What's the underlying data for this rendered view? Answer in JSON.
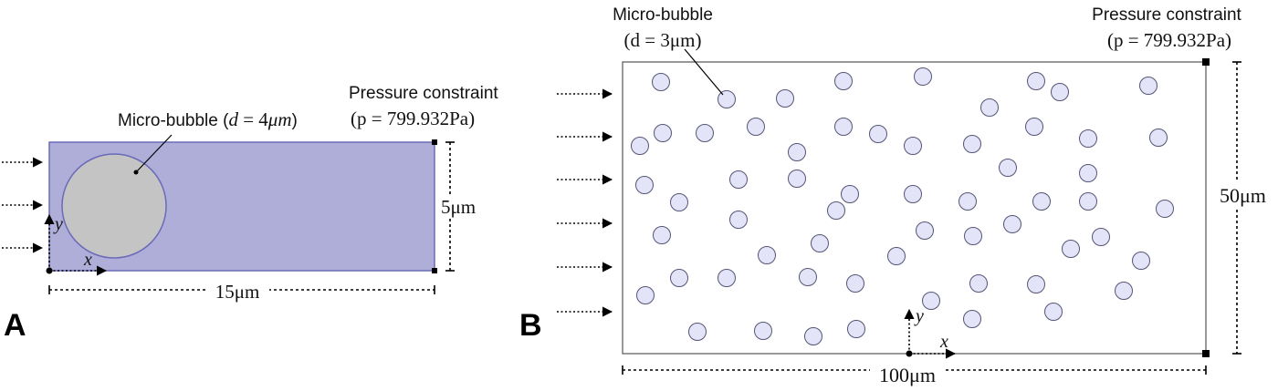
{
  "panel_a": {
    "letter": "A",
    "bubble_label": "Micro-bubble (",
    "bubble_d": "d",
    "bubble_eq": " = 4",
    "bubble_unit": "μm",
    "bubble_close": ")",
    "pressure_title": "Pressure constraint",
    "pressure_value": "(p = 799.932Pa)",
    "width_label": "15μm",
    "height_label": "5μm",
    "x_axis": "x",
    "y_axis": "y",
    "colors": {
      "domain_fill": "#aeaed8",
      "domain_stroke": "#6a6ab8",
      "bubble_fill": "#c4c4c4"
    }
  },
  "panel_b": {
    "letter": "B",
    "bubble_title": "Micro-bubble",
    "bubble_size": "(d = 3μm)",
    "pressure_title": "Pressure constraint",
    "pressure_value": "(p = 799.932Pa)",
    "width_label": "100μm",
    "height_label": "50μm",
    "x_axis": "x",
    "y_axis": "y",
    "colors": {
      "bubble_fill": "#e4e4f8",
      "bubble_stroke": "#555577"
    }
  }
}
